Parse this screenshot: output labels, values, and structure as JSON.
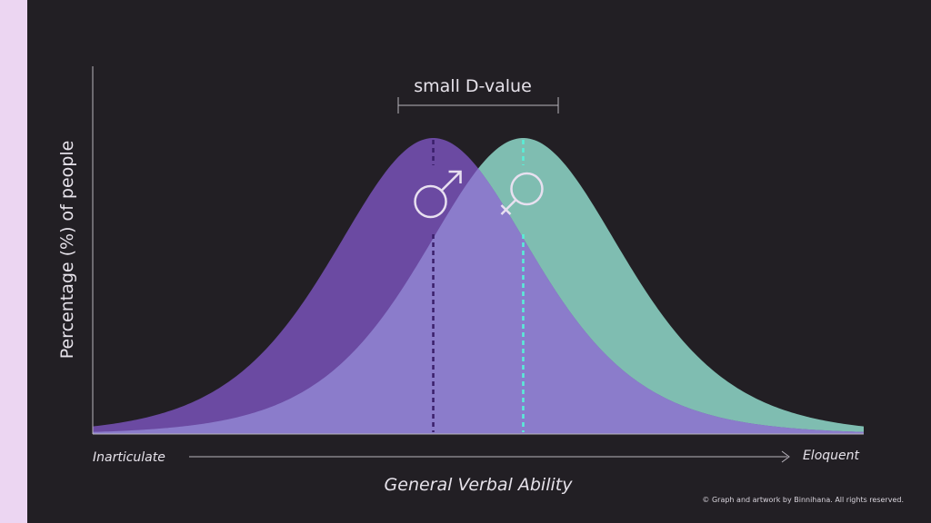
{
  "chart_data": {
    "type": "area",
    "title": "",
    "xlabel": "General Verbal Ability",
    "ylabel": "Percentage (%) of people",
    "x_axis_left_label": "Inarticulate",
    "x_axis_right_label": "Eloquent",
    "annotation": "small D-value",
    "series": [
      {
        "name": "male",
        "symbol": "♂",
        "mean": -0.35,
        "spread": 1.0,
        "color": "#6b4aa2",
        "mean_line_color": "#3a1f6a"
      },
      {
        "name": "female",
        "symbol": "♀",
        "mean": 0.35,
        "spread": 1.0,
        "color": "#7fbdb1",
        "mean_line_color": "#58f0d8"
      }
    ],
    "overlap_color": "#8b7ccb",
    "ylim": [
      0,
      1
    ],
    "grid": false
  },
  "credit": "© Graph and artwork by Binnihana. All rights reserved."
}
